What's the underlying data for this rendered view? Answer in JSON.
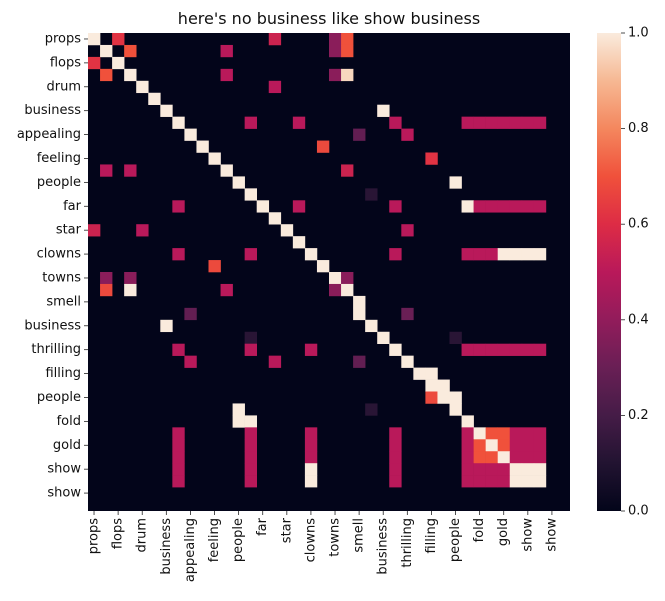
{
  "chart_data": {
    "type": "heatmap",
    "title": "here's no business like show business",
    "tokens": [
      "props",
      "",
      "flops",
      "",
      "drum",
      "",
      "business",
      "",
      "appealing",
      "",
      "feeling",
      "",
      "people",
      "",
      "far",
      "",
      "star",
      "",
      "clowns",
      "",
      "towns",
      "",
      "smell",
      "",
      "business",
      "",
      "thrilling",
      "",
      "filling",
      "",
      "people",
      "",
      "fold",
      "",
      "gold",
      "",
      "show",
      "",
      "show",
      ""
    ],
    "y_tick_labels": [
      "props",
      "flops",
      "drum",
      "business",
      "appealing",
      "feeling",
      "people",
      "far",
      "star",
      "clowns",
      "towns",
      "smell",
      "business",
      "thrilling",
      "filling",
      "people",
      "fold",
      "gold",
      "show",
      "show"
    ],
    "x_tick_labels": [
      "props",
      "flops",
      "drum",
      "business",
      "appealing",
      "feeling",
      "people",
      "far",
      "star",
      "clowns",
      "towns",
      "smell",
      "business",
      "thrilling",
      "filling",
      "people",
      "fold",
      "gold",
      "show",
      "show"
    ],
    "colorbar": {
      "min": 0.0,
      "max": 1.0,
      "ticks": [
        "0.0",
        "0.2",
        "0.4",
        "0.6",
        "0.8",
        "1.0"
      ],
      "colormap": "rocket"
    },
    "cells": [
      [
        0,
        0,
        1.0
      ],
      [
        0,
        2,
        0.62
      ],
      [
        0,
        15,
        0.55
      ],
      [
        0,
        20,
        0.38
      ],
      [
        0,
        21,
        0.7
      ],
      [
        1,
        1,
        1.0
      ],
      [
        1,
        3,
        0.7
      ],
      [
        1,
        11,
        0.5
      ],
      [
        1,
        20,
        0.38
      ],
      [
        1,
        21,
        0.7
      ],
      [
        2,
        0,
        0.62
      ],
      [
        2,
        2,
        1.0
      ],
      [
        3,
        1,
        0.7
      ],
      [
        3,
        3,
        1.0
      ],
      [
        3,
        11,
        0.5
      ],
      [
        3,
        20,
        0.38
      ],
      [
        3,
        21,
        0.96
      ],
      [
        4,
        4,
        1.0
      ],
      [
        4,
        15,
        0.5
      ],
      [
        5,
        5,
        1.0
      ],
      [
        6,
        6,
        1.0
      ],
      [
        6,
        24,
        1.0
      ],
      [
        7,
        7,
        1.0
      ],
      [
        7,
        13,
        0.5
      ],
      [
        7,
        17,
        0.5
      ],
      [
        7,
        25,
        0.5
      ],
      [
        7,
        31,
        0.5
      ],
      [
        7,
        32,
        0.5
      ],
      [
        7,
        33,
        0.5
      ],
      [
        7,
        34,
        0.5
      ],
      [
        7,
        35,
        0.5
      ],
      [
        7,
        36,
        0.5
      ],
      [
        7,
        37,
        0.5
      ],
      [
        8,
        8,
        1.0
      ],
      [
        8,
        22,
        0.28
      ],
      [
        8,
        26,
        0.5
      ],
      [
        9,
        9,
        1.0
      ],
      [
        9,
        19,
        0.68
      ],
      [
        10,
        10,
        1.0
      ],
      [
        10,
        28,
        0.62
      ],
      [
        11,
        1,
        0.5
      ],
      [
        11,
        3,
        0.5
      ],
      [
        11,
        11,
        1.0
      ],
      [
        11,
        21,
        0.55
      ],
      [
        12,
        12,
        1.0
      ],
      [
        12,
        30,
        1.0
      ],
      [
        13,
        13,
        1.0
      ],
      [
        13,
        23,
        0.12
      ],
      [
        14,
        7,
        0.5
      ],
      [
        14,
        14,
        1.0
      ],
      [
        14,
        17,
        0.5
      ],
      [
        14,
        25,
        0.5
      ],
      [
        14,
        31,
        1.0
      ],
      [
        14,
        32,
        0.5
      ],
      [
        14,
        33,
        0.5
      ],
      [
        14,
        34,
        0.5
      ],
      [
        14,
        35,
        0.5
      ],
      [
        14,
        36,
        0.5
      ],
      [
        14,
        37,
        0.5
      ],
      [
        15,
        15,
        1.0
      ],
      [
        16,
        0,
        0.55
      ],
      [
        16,
        4,
        0.5
      ],
      [
        16,
        16,
        1.0
      ],
      [
        16,
        26,
        0.5
      ],
      [
        17,
        17,
        1.0
      ],
      [
        18,
        7,
        0.5
      ],
      [
        18,
        13,
        0.5
      ],
      [
        18,
        18,
        1.0
      ],
      [
        18,
        25,
        0.5
      ],
      [
        18,
        31,
        0.5
      ],
      [
        18,
        32,
        0.5
      ],
      [
        18,
        33,
        0.5
      ],
      [
        18,
        34,
        1.0
      ],
      [
        18,
        35,
        1.0
      ],
      [
        18,
        36,
        1.0
      ],
      [
        18,
        37,
        1.0
      ],
      [
        19,
        10,
        0.68
      ],
      [
        19,
        19,
        1.0
      ],
      [
        20,
        1,
        0.38
      ],
      [
        20,
        3,
        0.38
      ],
      [
        20,
        20,
        1.0
      ],
      [
        20,
        21,
        0.38
      ],
      [
        21,
        1,
        0.68
      ],
      [
        21,
        3,
        1.0
      ],
      [
        21,
        11,
        0.5
      ],
      [
        21,
        20,
        0.38
      ],
      [
        21,
        21,
        1.0
      ],
      [
        22,
        22,
        1.0
      ],
      [
        23,
        8,
        0.28
      ],
      [
        23,
        22,
        1.0
      ],
      [
        23,
        26,
        0.3
      ],
      [
        24,
        6,
        1.0
      ],
      [
        24,
        23,
        1.0
      ],
      [
        25,
        13,
        0.12
      ],
      [
        25,
        24,
        1.0
      ],
      [
        25,
        30,
        0.12
      ],
      [
        26,
        7,
        0.5
      ],
      [
        26,
        13,
        0.5
      ],
      [
        26,
        18,
        0.5
      ],
      [
        26,
        25,
        1.0
      ],
      [
        26,
        31,
        0.5
      ],
      [
        26,
        32,
        0.5
      ],
      [
        26,
        33,
        0.5
      ],
      [
        26,
        34,
        0.5
      ],
      [
        26,
        35,
        0.5
      ],
      [
        26,
        36,
        0.5
      ],
      [
        26,
        37,
        0.5
      ],
      [
        27,
        8,
        0.5
      ],
      [
        27,
        15,
        0.5
      ],
      [
        27,
        22,
        0.28
      ],
      [
        27,
        26,
        1.0
      ],
      [
        28,
        27,
        1.0
      ],
      [
        28,
        28,
        1.0
      ],
      [
        29,
        28,
        1.0
      ],
      [
        29,
        29,
        1.0
      ],
      [
        30,
        28,
        0.68
      ],
      [
        30,
        29,
        1.0
      ],
      [
        30,
        30,
        1.0
      ],
      [
        31,
        12,
        1.0
      ],
      [
        31,
        23,
        0.12
      ],
      [
        31,
        30,
        1.0
      ],
      [
        32,
        12,
        1.0
      ],
      [
        32,
        13,
        1.0
      ],
      [
        32,
        31,
        1.0
      ],
      [
        33,
        7,
        0.5
      ],
      [
        33,
        13,
        0.5
      ],
      [
        33,
        18,
        0.5
      ],
      [
        33,
        25,
        0.5
      ],
      [
        33,
        31,
        0.5
      ],
      [
        33,
        32,
        1.0
      ],
      [
        33,
        33,
        0.7
      ],
      [
        33,
        34,
        0.7
      ],
      [
        33,
        35,
        0.5
      ],
      [
        33,
        36,
        0.5
      ],
      [
        33,
        37,
        0.5
      ],
      [
        34,
        7,
        0.5
      ],
      [
        34,
        13,
        0.5
      ],
      [
        34,
        18,
        0.5
      ],
      [
        34,
        25,
        0.5
      ],
      [
        34,
        31,
        0.5
      ],
      [
        34,
        32,
        0.7
      ],
      [
        34,
        33,
        1.0
      ],
      [
        34,
        34,
        0.7
      ],
      [
        34,
        35,
        0.5
      ],
      [
        34,
        36,
        0.5
      ],
      [
        34,
        37,
        0.5
      ],
      [
        35,
        7,
        0.5
      ],
      [
        35,
        13,
        0.5
      ],
      [
        35,
        18,
        0.5
      ],
      [
        35,
        25,
        0.5
      ],
      [
        35,
        31,
        0.5
      ],
      [
        35,
        32,
        0.7
      ],
      [
        35,
        33,
        0.7
      ],
      [
        35,
        34,
        1.0
      ],
      [
        35,
        35,
        0.5
      ],
      [
        35,
        36,
        0.5
      ],
      [
        35,
        37,
        0.5
      ],
      [
        36,
        7,
        0.5
      ],
      [
        36,
        13,
        0.5
      ],
      [
        36,
        18,
        1.0
      ],
      [
        36,
        25,
        0.5
      ],
      [
        36,
        31,
        0.5
      ],
      [
        36,
        32,
        0.5
      ],
      [
        36,
        33,
        0.5
      ],
      [
        36,
        34,
        0.5
      ],
      [
        36,
        35,
        1.0
      ],
      [
        36,
        36,
        1.0
      ],
      [
        36,
        37,
        1.0
      ],
      [
        37,
        7,
        0.5
      ],
      [
        37,
        13,
        0.5
      ],
      [
        37,
        18,
        1.0
      ],
      [
        37,
        25,
        0.5
      ],
      [
        37,
        31,
        0.5
      ],
      [
        37,
        32,
        0.5
      ],
      [
        37,
        33,
        0.5
      ],
      [
        37,
        34,
        0.5
      ],
      [
        37,
        35,
        1.0
      ],
      [
        37,
        36,
        1.0
      ],
      [
        37,
        37,
        1.0
      ]
    ]
  }
}
